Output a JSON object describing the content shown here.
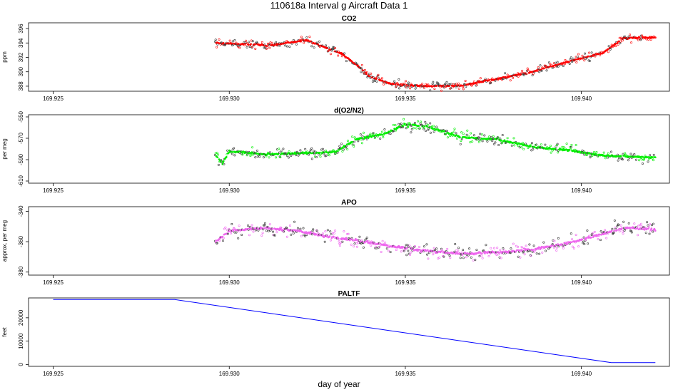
{
  "figure": {
    "title": "110618a   Interval g Aircraft Data 1",
    "xlabel": "day of year"
  },
  "chart_data": [
    {
      "type": "scatter",
      "title": "CO2",
      "ylabel": "ppm",
      "color": "#ff0000",
      "xlim": [
        169.9243,
        169.9425
      ],
      "ylim": [
        387.3,
        396.8
      ],
      "x_ticks": [
        "169.925",
        "169.930",
        "169.935",
        "169.940"
      ],
      "y_ticks": [
        "388",
        "390",
        "392",
        "394",
        "396"
      ],
      "x_range": [
        169.9296,
        169.9421
      ],
      "profile_x": [
        169.9296,
        169.9312,
        169.9322,
        169.9326,
        169.9332,
        169.9336,
        169.934,
        169.9346,
        169.9356,
        169.9366,
        169.9376,
        169.9386,
        169.9396,
        169.9406,
        169.9412,
        169.9421
      ],
      "profile_y": [
        394.0,
        393.7,
        394.4,
        393.6,
        392.5,
        391.0,
        389.3,
        388.3,
        388.0,
        388.1,
        389.0,
        390.0,
        391.4,
        392.6,
        394.7,
        394.8
      ],
      "noise": 0.4
    },
    {
      "type": "scatter",
      "title": "d(O2/N2)",
      "ylabel": "per meg",
      "color": "#00ee00",
      "xlim": [
        169.9243,
        169.9425
      ],
      "ylim": [
        -612,
        -548
      ],
      "x_ticks": [
        "169.925",
        "169.930",
        "169.935",
        "169.940"
      ],
      "y_ticks": [
        "-610",
        "-590",
        "-570",
        "-550"
      ],
      "x_range": [
        169.9296,
        169.9421
      ],
      "profile_x": [
        169.9296,
        169.9298,
        169.93,
        169.931,
        169.932,
        169.933,
        169.9336,
        169.9344,
        169.935,
        169.9356,
        169.9366,
        169.9376,
        169.9386,
        169.9396,
        169.9406,
        169.9412,
        169.9421
      ],
      "profile_y": [
        -585,
        -594,
        -582,
        -585,
        -584,
        -583,
        -571,
        -566,
        -557,
        -559,
        -569,
        -571,
        -578,
        -581,
        -586,
        -587,
        -588
      ],
      "noise": 3.5
    },
    {
      "type": "scatter",
      "title": "APO",
      "ylabel": "approx. per meg",
      "color": "#ee66ee",
      "xlim": [
        169.9243,
        169.9425
      ],
      "ylim": [
        -382,
        -337
      ],
      "x_ticks": [
        "169.925",
        "169.930",
        "169.935",
        "169.940"
      ],
      "y_ticks": [
        "-380",
        "-360",
        "-340"
      ],
      "x_range": [
        169.9296,
        169.9421
      ],
      "profile_x": [
        169.9296,
        169.93,
        169.931,
        169.932,
        169.9326,
        169.9336,
        169.9346,
        169.9356,
        169.9366,
        169.9376,
        169.9386,
        169.9396,
        169.9406,
        169.9412,
        169.9421
      ],
      "profile_y": [
        -360,
        -353,
        -351,
        -353,
        -356,
        -359,
        -363,
        -366,
        -368,
        -367,
        -365,
        -361,
        -355,
        -351,
        -352
      ],
      "noise": 3.5
    },
    {
      "type": "line",
      "title": "PALTF",
      "ylabel": "feet",
      "color": "#0000ff",
      "xlim": [
        169.9243,
        169.9425
      ],
      "ylim": [
        -800,
        28500
      ],
      "x_ticks": [
        "169.925",
        "169.930",
        "169.935",
        "169.940"
      ],
      "y_ticks": [
        "0",
        "10000",
        "20000"
      ],
      "x": [
        169.925,
        169.92845,
        169.94085,
        169.9421
      ],
      "y": [
        27800,
        27800,
        800,
        800
      ]
    }
  ]
}
